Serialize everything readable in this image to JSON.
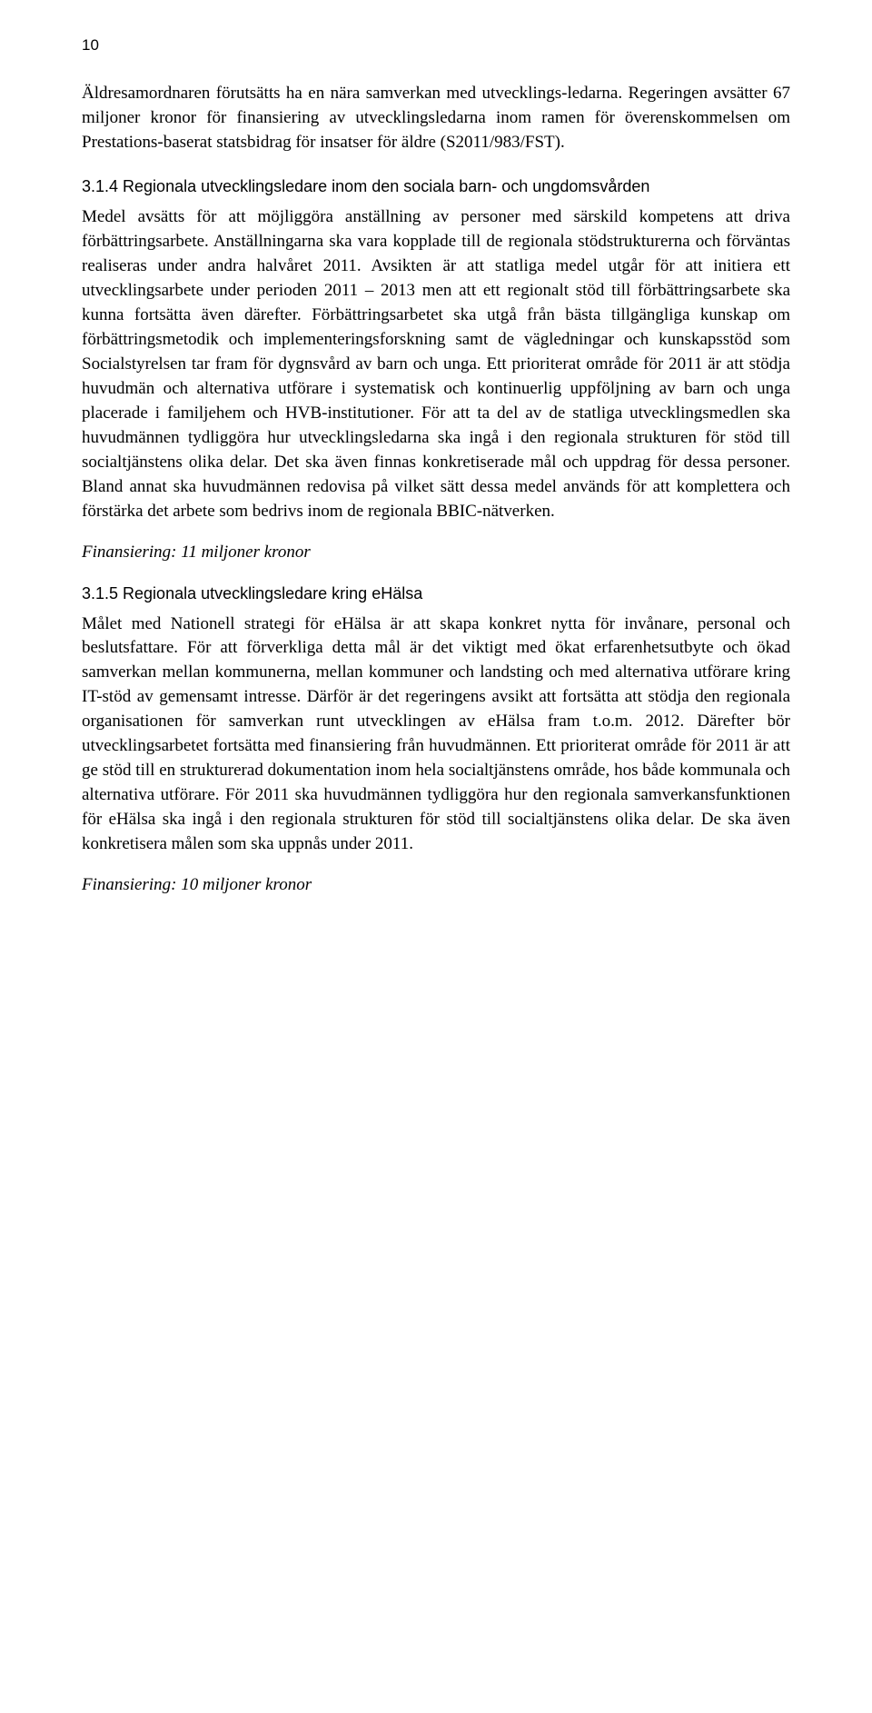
{
  "page_number": "10",
  "intro_paragraph": "Äldresamordnaren förutsätts ha en nära samverkan med utvecklings-ledarna. Regeringen avsätter 67 miljoner kronor för finansiering av utvecklingsledarna inom ramen för överenskommelsen om Prestations-baserat statsbidrag för insatser för äldre (S2011/983/FST).",
  "section_314": {
    "heading": "3.1.4 Regionala utvecklingsledare inom den sociala barn- och ungdomsvården",
    "body": "Medel avsätts för att möjliggöra anställning av personer med särskild kompetens att driva förbättringsarbete. Anställningarna ska vara kopplade till de regionala stödstrukturerna och förväntas realiseras under andra halvåret 2011. Avsikten är att statliga medel utgår för att initiera ett utvecklingsarbete under perioden 2011 – 2013 men att ett regionalt stöd till förbättringsarbete ska kunna fortsätta även därefter. Förbättringsarbetet ska utgå från bästa tillgängliga kunskap om förbättringsmetodik och implementeringsforskning samt de vägledningar och kunskapsstöd som Socialstyrelsen tar fram för dygnsvård av barn och unga. Ett prioriterat område för 2011 är att stödja huvudmän och alternativa utförare i systematisk och kontinuerlig uppföljning av barn och unga placerade i familjehem och HVB-institutioner. För att ta del av de statliga utvecklingsmedlen ska huvudmännen tydliggöra hur utvecklingsledarna ska ingå i den regionala strukturen för stöd till socialtjänstens olika delar. Det ska även finnas konkretiserade mål och uppdrag för dessa personer. Bland annat ska huvudmännen redovisa på vilket sätt dessa medel används för att komplettera och förstärka det arbete som bedrivs inom de regionala BBIC-nätverken.",
    "financing": "Finansiering: 11 miljoner kronor"
  },
  "section_315": {
    "heading": "3.1.5 Regionala utvecklingsledare kring eHälsa",
    "body": "Målet med Nationell strategi för eHälsa är att skapa konkret nytta för invånare, personal och beslutsfattare. För att förverkliga detta mål är det viktigt med ökat erfarenhetsutbyte och ökad samverkan mellan kommunerna, mellan kommuner och landsting och med alternativa utförare kring IT-stöd av gemensamt intresse. Därför är det regeringens avsikt att fortsätta att stödja den regionala organisationen för samverkan runt utvecklingen av eHälsa fram t.o.m. 2012. Därefter bör utvecklingsarbetet fortsätta med finansiering från huvudmännen. Ett prioriterat område för 2011 är att ge stöd till en strukturerad dokumentation inom hela socialtjänstens område, hos både kommunala och alternativa utförare. För 2011 ska huvudmännen tydliggöra hur den regionala samverkansfunktionen för eHälsa ska ingå i den regionala strukturen för stöd till socialtjänstens olika delar. De ska även konkretisera målen som ska uppnås under 2011.",
    "financing": "Finansiering: 10 miljoner kronor"
  }
}
